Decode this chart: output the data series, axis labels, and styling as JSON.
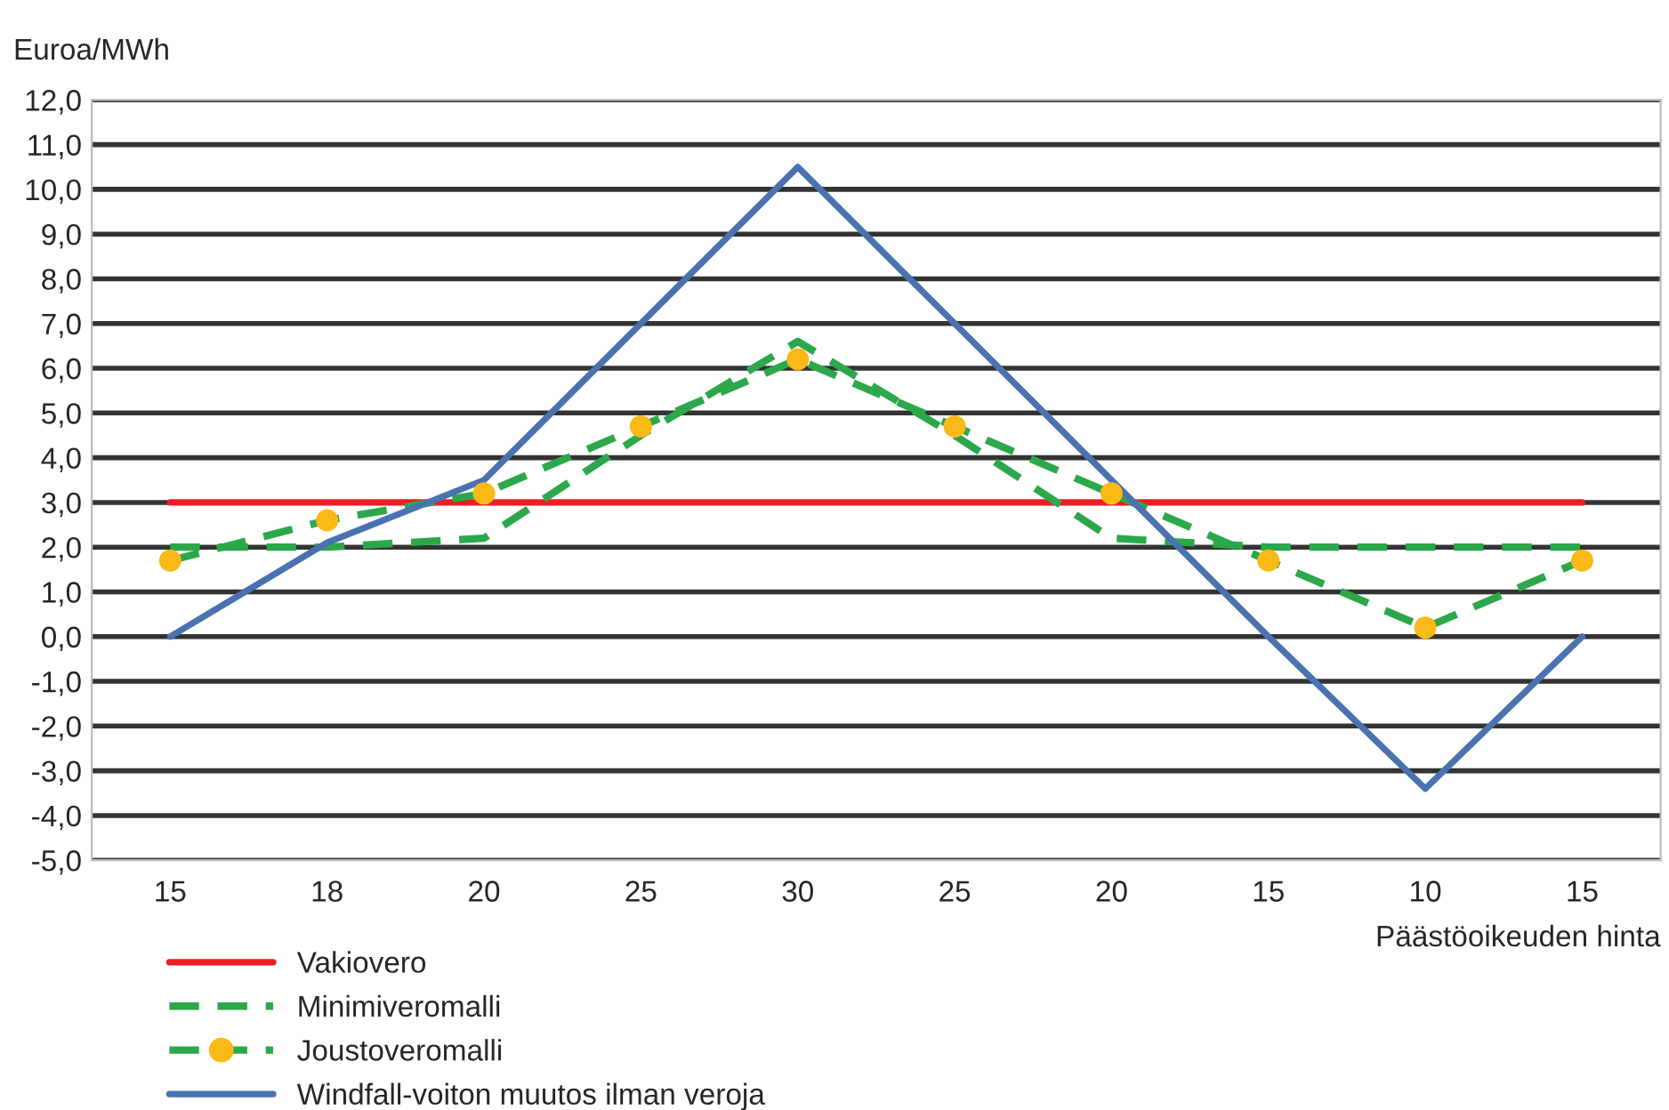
{
  "chart_data": {
    "type": "line",
    "ylabel": "Euroa/MWh",
    "xlabel": "Päästöoikeuden hinta",
    "categories": [
      "15",
      "18",
      "20",
      "25",
      "30",
      "25",
      "20",
      "15",
      "10",
      "15"
    ],
    "series": [
      {
        "name": "Vakiovero",
        "color": "#ee1c25",
        "line_style": "solid",
        "marker": "none",
        "values": [
          3.0,
          3.0,
          3.0,
          3.0,
          3.0,
          3.0,
          3.0,
          3.0,
          3.0,
          3.0
        ]
      },
      {
        "name": "Minimiveromalli",
        "color": "#2ca84a",
        "line_style": "dashed",
        "marker": "none",
        "values": [
          2.0,
          2.0,
          2.2,
          4.5,
          6.6,
          4.5,
          2.2,
          2.0,
          2.0,
          2.0
        ]
      },
      {
        "name": "Joustoveromalli",
        "color": "#2ca84a",
        "line_style": "dashed",
        "marker": "circle",
        "colors": [
          "#fbb918",
          "#fbb918",
          "#fbb918",
          "#fbb918",
          "#fbb918",
          "#fbb918",
          "#fbb918",
          "#fbb918",
          "#fbb918",
          "#fbb918"
        ],
        "values": [
          1.7,
          2.6,
          3.2,
          4.7,
          6.2,
          4.7,
          3.2,
          1.7,
          0.2,
          1.7
        ]
      },
      {
        "name": "Windfall-voiton muutos ilman veroja",
        "color": "#4a72b0",
        "line_style": "solid",
        "marker": "none",
        "values": [
          0.0,
          2.1,
          3.5,
          7.0,
          10.5,
          7.0,
          3.5,
          0.0,
          -3.4,
          0.0
        ]
      }
    ],
    "ylim": [
      -5,
      12
    ],
    "yticks": [
      {
        "value": -5,
        "label": "-5,0"
      },
      {
        "value": -4,
        "label": "-4,0"
      },
      {
        "value": -3,
        "label": "-3,0"
      },
      {
        "value": -2,
        "label": "-2,0"
      },
      {
        "value": -1,
        "label": "-1,0"
      },
      {
        "value": 0,
        "label": "0,0"
      },
      {
        "value": 1,
        "label": "1,0"
      },
      {
        "value": 2,
        "label": "2,0"
      },
      {
        "value": 3,
        "label": "3,0"
      },
      {
        "value": 4,
        "label": "4,0"
      },
      {
        "value": 5,
        "label": "5,0"
      },
      {
        "value": 6,
        "label": "6,0"
      },
      {
        "value": 7,
        "label": "7,0"
      },
      {
        "value": 8,
        "label": "8,0"
      },
      {
        "value": 9,
        "label": "9,0"
      },
      {
        "value": 10,
        "label": "10,0"
      },
      {
        "value": 11,
        "label": "11,0"
      },
      {
        "value": 12,
        "label": "12,0"
      }
    ],
    "grid": "y",
    "legend": "bottom left"
  }
}
